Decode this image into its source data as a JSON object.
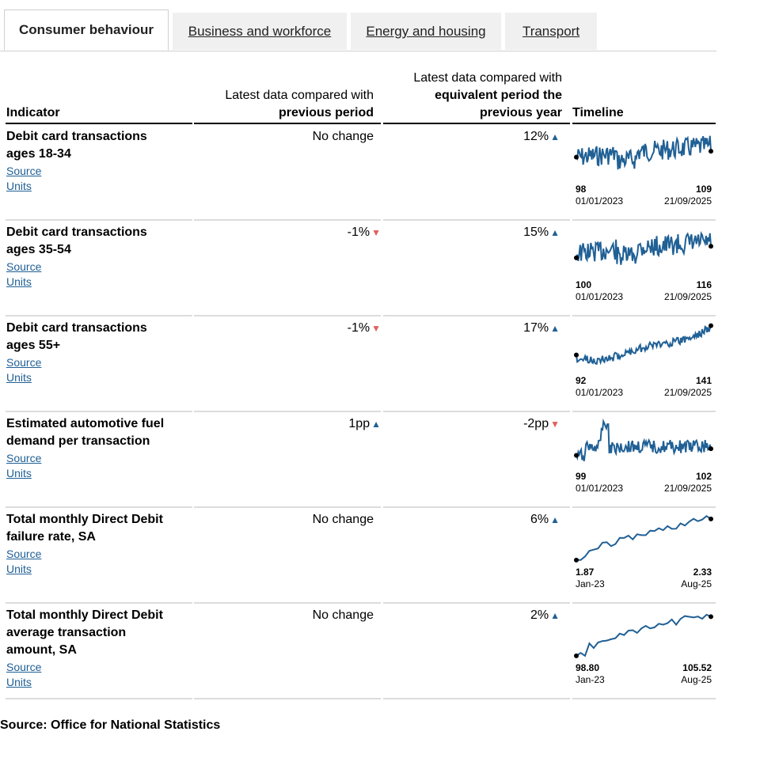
{
  "tabs": [
    {
      "label": "Consumer behaviour",
      "active": true
    },
    {
      "label": "Business and workforce",
      "active": false
    },
    {
      "label": "Energy and housing",
      "active": false
    },
    {
      "label": "Transport",
      "active": false
    }
  ],
  "table": {
    "col_indicator": "Indicator",
    "col_prev_prefix": "Latest data compared with",
    "col_prev_bold": "previous period",
    "col_year_prefix": "Latest data compared with",
    "col_year_bold_1": "equivalent period the",
    "col_year_bold_2": "previous year",
    "col_timeline": "Timeline"
  },
  "rows": [
    {
      "title_1": "Debit card transactions",
      "title_2": "ages 18-34",
      "title_3": "",
      "source": "Source",
      "units": "Units",
      "prev": "No change",
      "prev_dir": "none",
      "year": "12%",
      "year_dir": "up",
      "start_value": "98",
      "end_value": "109",
      "start_label": "01/01/2023",
      "end_label": "21/09/2025"
    },
    {
      "title_1": "Debit card transactions",
      "title_2": "ages 35-54",
      "title_3": "",
      "source": "Source",
      "units": "Units",
      "prev": "-1%",
      "prev_dir": "down",
      "year": "15%",
      "year_dir": "up",
      "start_value": "100",
      "end_value": "116",
      "start_label": "01/01/2023",
      "end_label": "21/09/2025"
    },
    {
      "title_1": "Debit card transactions",
      "title_2": "ages 55+",
      "title_3": "",
      "source": "Source",
      "units": "Units",
      "prev": "-1%",
      "prev_dir": "down",
      "year": "17%",
      "year_dir": "up",
      "start_value": "92",
      "end_value": "141",
      "start_label": "01/01/2023",
      "end_label": "21/09/2025"
    },
    {
      "title_1": "Estimated automotive fuel",
      "title_2": "demand per transaction",
      "title_3": "",
      "source": "Source",
      "units": "Units",
      "prev": "1pp",
      "prev_dir": "up",
      "year": "-2pp",
      "year_dir": "down",
      "start_value": "99",
      "end_value": "102",
      "start_label": "01/01/2023",
      "end_label": "21/09/2025"
    },
    {
      "title_1": "Total monthly Direct Debit",
      "title_2": "failure rate, SA",
      "title_3": "",
      "source": "Source",
      "units": "Units",
      "prev": "No change",
      "prev_dir": "none",
      "year": "6%",
      "year_dir": "up",
      "start_value": "1.87",
      "end_value": "2.33",
      "start_label": "Jan-23",
      "end_label": "Aug-25"
    },
    {
      "title_1": "Total monthly Direct Debit",
      "title_2": "average transaction",
      "title_3": "amount, SA",
      "source": "Source",
      "units": "Units",
      "prev": "No change",
      "prev_dir": "none",
      "year": "2%",
      "year_dir": "up",
      "start_value": "98.80",
      "end_value": "105.52",
      "start_label": "Jan-23",
      "end_label": "Aug-25"
    }
  ],
  "colors": {
    "line": "#206095",
    "up": "#206095",
    "down": "#e0605d"
  },
  "footer": "Source: Office for National Statistics"
}
